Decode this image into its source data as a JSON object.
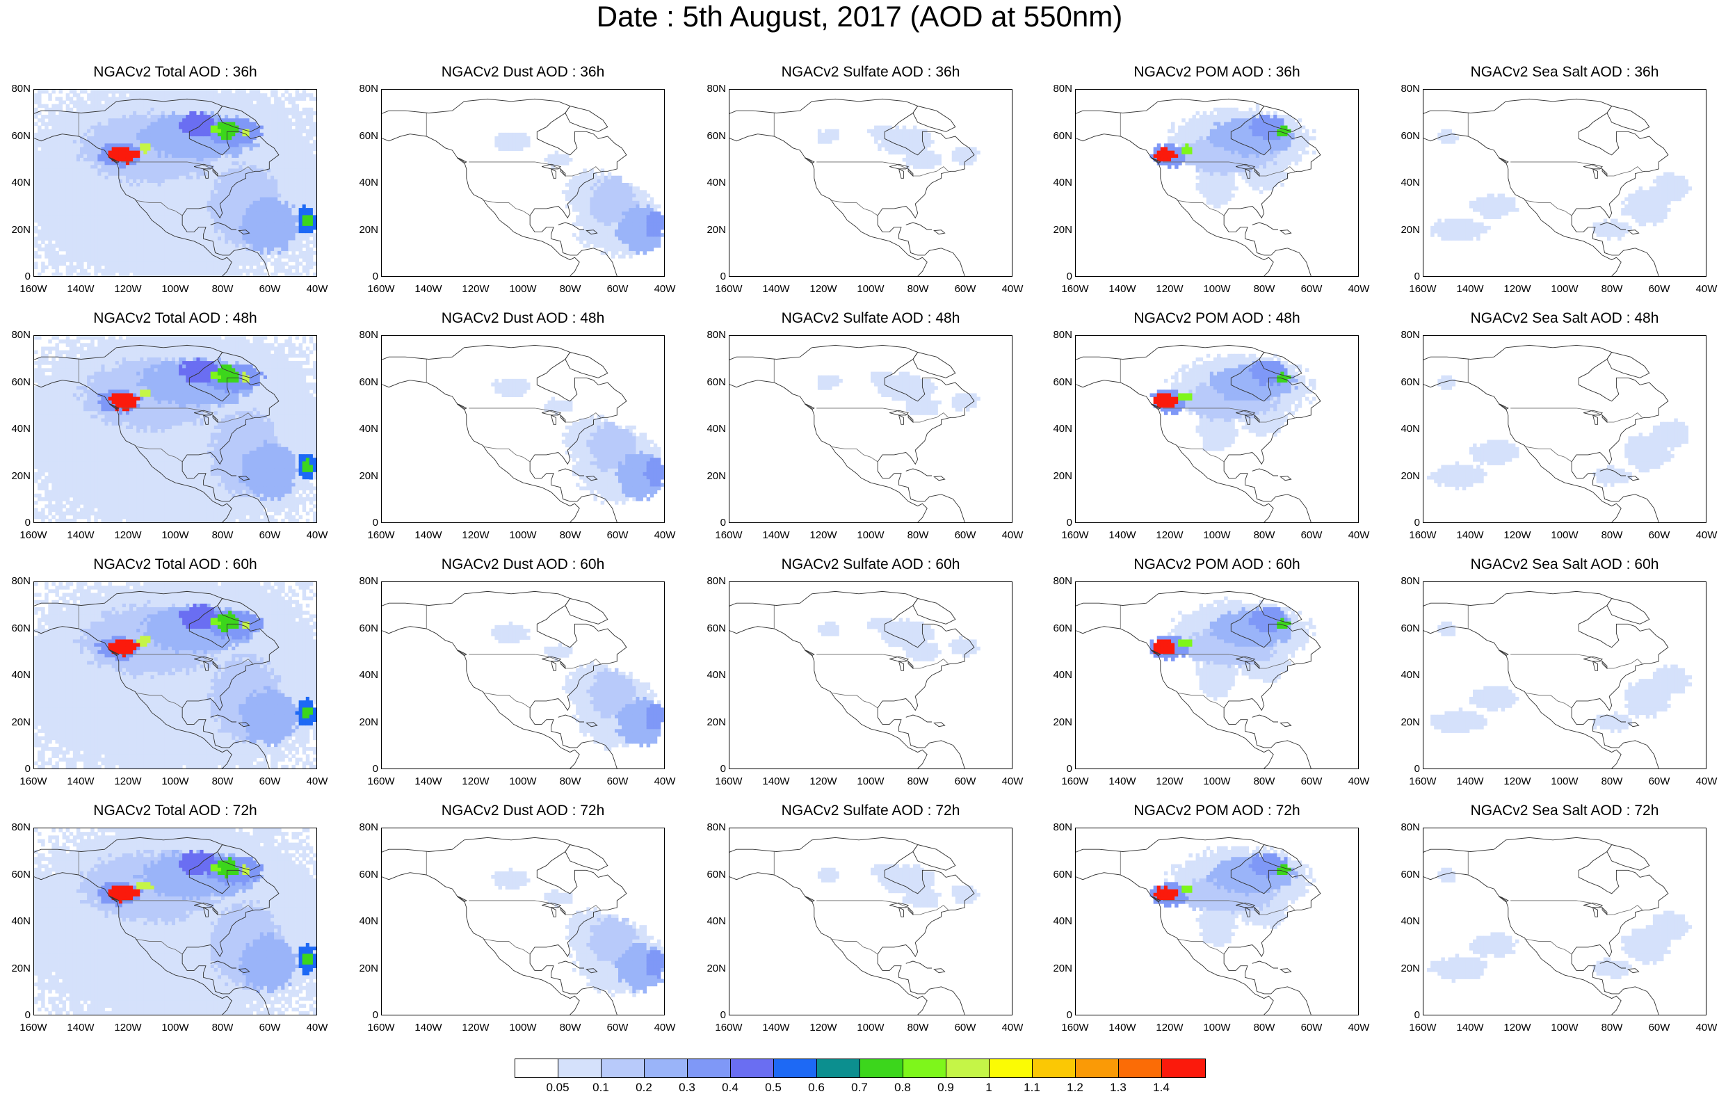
{
  "title": "Date : 5th August, 2017 (AOD at 550nm)",
  "rows": [
    {
      "panels": [
        {
          "title": "NGACv2 Total AOD : 36h",
          "species": "total"
        },
        {
          "title": "NGACv2 Dust AOD : 36h",
          "species": "dust"
        },
        {
          "title": "NGACv2 Sulfate AOD : 36h",
          "species": "sulfate"
        },
        {
          "title": "NGACv2 POM AOD : 36h",
          "species": "pom"
        },
        {
          "title": "NGACv2 Sea Salt AOD : 36h",
          "species": "seasalt"
        }
      ]
    },
    {
      "panels": [
        {
          "title": "NGACv2 Total AOD : 48h",
          "species": "total"
        },
        {
          "title": "NGACv2 Dust AOD : 48h",
          "species": "dust"
        },
        {
          "title": "NGACv2 Sulfate AOD : 48h",
          "species": "sulfate"
        },
        {
          "title": "NGACv2 POM AOD : 48h",
          "species": "pom"
        },
        {
          "title": "NGACv2 Sea Salt AOD : 48h",
          "species": "seasalt"
        }
      ]
    },
    {
      "panels": [
        {
          "title": "NGACv2 Total AOD : 60h",
          "species": "total"
        },
        {
          "title": "NGACv2 Dust AOD : 60h",
          "species": "dust"
        },
        {
          "title": "NGACv2 Sulfate AOD : 60h",
          "species": "sulfate"
        },
        {
          "title": "NGACv2 POM AOD : 60h",
          "species": "pom"
        },
        {
          "title": "NGACv2 Sea Salt AOD : 60h",
          "species": "seasalt"
        }
      ]
    },
    {
      "panels": [
        {
          "title": "NGACv2 Total AOD : 72h",
          "species": "total"
        },
        {
          "title": "NGACv2 Dust AOD : 72h",
          "species": "dust"
        },
        {
          "title": "NGACv2 Sulfate AOD : 72h",
          "species": "sulfate"
        },
        {
          "title": "NGACv2 POM AOD : 72h",
          "species": "pom"
        },
        {
          "title": "NGACv2 Sea Salt  AOD : 72h",
          "species": "seasalt"
        }
      ]
    }
  ],
  "lat_labels": [
    "80N",
    "60N",
    "40N",
    "20N",
    "0"
  ],
  "lon_labels": [
    "160W",
    "140W",
    "120W",
    "100W",
    "80W",
    "60W",
    "40W"
  ],
  "colorbar": {
    "colors": [
      "#ffffff",
      "#d5e1fb",
      "#b8cafa",
      "#9ab4f9",
      "#7f98f7",
      "#6a6ef2",
      "#1d69f5",
      "#0c8f8f",
      "#3cd61c",
      "#7ef61b",
      "#c5f547",
      "#fbfb04",
      "#fbc804",
      "#fa9a06",
      "#fb6c06",
      "#fb1a0c"
    ],
    "labels": [
      "0.05",
      "0.1",
      "0.2",
      "0.3",
      "0.4",
      "0.5",
      "0.6",
      "0.7",
      "0.8",
      "0.9",
      "1",
      "1.1",
      "1.2",
      "1.3",
      "1.4"
    ]
  }
}
